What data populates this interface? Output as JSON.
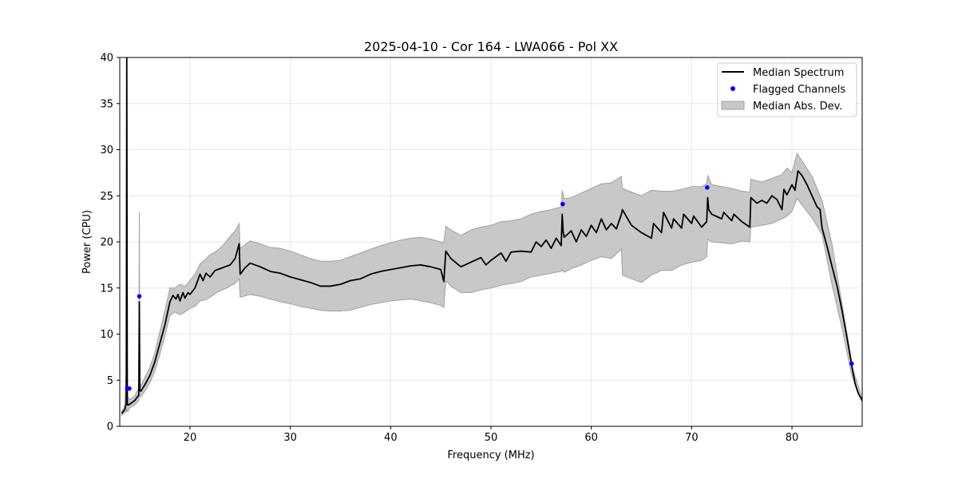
{
  "chart_data": {
    "type": "line",
    "title": "2025-04-10 - Cor 164 - LWA066 - Pol XX",
    "xlabel": "Frequency (MHz)",
    "ylabel": "Power (CPU)",
    "xlim": [
      13,
      87
    ],
    "ylim": [
      0,
      40
    ],
    "xticks": [
      20,
      30,
      40,
      50,
      60,
      70,
      80
    ],
    "yticks": [
      0,
      5,
      10,
      15,
      20,
      25,
      30,
      35,
      40
    ],
    "grid": true,
    "legend_position": "top-right",
    "colors": {
      "median": "#000000",
      "flagged": "#0000ff",
      "mad_fill": "#c8c8c8",
      "mad_edge": "#a0a0a0"
    },
    "legend": [
      {
        "key": "median",
        "label": "Median Spectrum"
      },
      {
        "key": "flagged",
        "label": "Flagged Channels"
      },
      {
        "key": "mad",
        "label": "Median Abs. Dev."
      }
    ],
    "series": [
      {
        "name": "Median Spectrum",
        "x": [
          13.2,
          13.5,
          13.65,
          13.7,
          13.75,
          13.8,
          14.0,
          14.5,
          14.9,
          14.95,
          15.0,
          15.1,
          15.5,
          16.0,
          16.5,
          17.0,
          17.5,
          18.0,
          18.3,
          18.6,
          18.8,
          19.0,
          19.3,
          19.5,
          19.8,
          20.0,
          20.5,
          21.0,
          21.3,
          21.6,
          22.0,
          22.5,
          23.0,
          23.5,
          24.0,
          24.5,
          24.9,
          25.0,
          25.5,
          26.0,
          27.0,
          28.0,
          29.0,
          30.0,
          31.0,
          32.0,
          33.0,
          34.0,
          35.0,
          36.0,
          37.0,
          38.0,
          39.0,
          40.0,
          41.0,
          42.0,
          43.0,
          44.0,
          45.0,
          45.3,
          45.5,
          46.0,
          47.0,
          48.0,
          49.0,
          49.5,
          50.0,
          51.0,
          51.5,
          52.0,
          53.0,
          54.0,
          54.5,
          55.0,
          55.5,
          56.0,
          56.5,
          57.0,
          57.1,
          57.2,
          57.3,
          58.0,
          58.5,
          59.0,
          59.5,
          60.0,
          60.5,
          61.0,
          61.5,
          62.0,
          62.5,
          63.0,
          63.1,
          64.0,
          65.0,
          66.0,
          66.2,
          67.0,
          67.2,
          68.0,
          68.2,
          69.0,
          69.2,
          70.0,
          70.2,
          71.0,
          71.5,
          71.6,
          71.7,
          72.0,
          73.0,
          73.2,
          74.0,
          74.2,
          75.0,
          75.8,
          75.9,
          76.5,
          77.0,
          77.5,
          78.0,
          78.5,
          79.0,
          79.2,
          79.5,
          80.0,
          80.3,
          80.6,
          81.0,
          81.5,
          82.0,
          82.5,
          82.8,
          83.0,
          83.5,
          84.0,
          84.5,
          85.0,
          85.5,
          85.9,
          86.0,
          86.3,
          86.6,
          87.0
        ],
        "values": [
          1.4,
          1.8,
          2.5,
          40.0,
          2.5,
          2.3,
          2.4,
          2.8,
          3.4,
          13.5,
          4.0,
          3.8,
          4.5,
          5.5,
          7.0,
          9.0,
          11.0,
          13.5,
          14.2,
          13.8,
          14.3,
          13.6,
          14.5,
          13.9,
          14.5,
          14.3,
          15.0,
          16.5,
          15.8,
          16.6,
          16.2,
          16.9,
          17.1,
          17.3,
          17.5,
          18.2,
          19.8,
          16.5,
          17.2,
          17.7,
          17.3,
          16.8,
          16.6,
          16.2,
          15.9,
          15.6,
          15.2,
          15.2,
          15.4,
          15.8,
          16.0,
          16.5,
          16.8,
          17.0,
          17.2,
          17.4,
          17.5,
          17.3,
          17.0,
          15.7,
          19.0,
          18.2,
          17.3,
          17.8,
          18.3,
          17.5,
          18.0,
          18.8,
          17.9,
          18.9,
          19.0,
          18.9,
          20.0,
          19.5,
          20.2,
          19.3,
          20.4,
          19.6,
          23.0,
          21.0,
          20.5,
          21.2,
          20.0,
          21.3,
          20.6,
          21.8,
          21.0,
          22.5,
          21.3,
          22.0,
          21.4,
          23.0,
          23.5,
          21.8,
          21.0,
          20.4,
          22.0,
          21.0,
          23.2,
          21.5,
          22.5,
          21.5,
          23.0,
          22.0,
          22.8,
          21.6,
          22.2,
          24.8,
          23.5,
          23.0,
          22.5,
          23.2,
          22.3,
          23.0,
          22.2,
          21.6,
          24.8,
          24.2,
          24.5,
          24.2,
          25.0,
          24.6,
          23.5,
          25.7,
          25.1,
          26.2,
          25.6,
          27.7,
          27.2,
          26.2,
          25.0,
          23.8,
          23.5,
          21.5,
          19.5,
          17.3,
          15.2,
          12.5,
          9.5,
          7.0,
          6.3,
          4.6,
          3.6,
          2.8
        ]
      },
      {
        "name": "Median Abs. Dev.",
        "x": [
          13.2,
          13.5,
          13.65,
          13.7,
          13.75,
          13.8,
          14.0,
          14.5,
          14.9,
          14.95,
          15.0,
          15.1,
          15.5,
          16.0,
          16.5,
          17.0,
          17.5,
          18.0,
          18.5,
          19.0,
          19.5,
          20.0,
          20.5,
          21.0,
          21.5,
          22.0,
          22.5,
          23.0,
          23.5,
          24.0,
          24.5,
          24.9,
          25.0,
          26.0,
          27.0,
          28.0,
          29.0,
          30.0,
          31.0,
          32.0,
          33.0,
          34.0,
          35.0,
          36.0,
          37.0,
          38.0,
          39.0,
          40.0,
          41.0,
          42.0,
          43.0,
          44.0,
          45.0,
          45.3,
          45.5,
          46.0,
          47.0,
          48.0,
          49.0,
          50.0,
          51.0,
          52.0,
          53.0,
          54.0,
          55.0,
          56.0,
          57.0,
          57.1,
          57.3,
          58.0,
          59.0,
          60.0,
          61.0,
          62.0,
          63.0,
          63.1,
          64.0,
          65.0,
          66.0,
          67.0,
          68.0,
          69.0,
          70.0,
          71.0,
          71.5,
          71.6,
          72.0,
          73.0,
          74.0,
          75.0,
          75.8,
          75.9,
          77.0,
          78.0,
          79.0,
          79.5,
          80.0,
          80.5,
          81.0,
          82.0,
          83.0,
          84.0,
          85.0,
          85.9,
          86.0,
          87.0
        ],
        "upper": [
          1.6,
          2.2,
          6.2,
          40.0,
          6.2,
          3.2,
          2.9,
          3.3,
          4.2,
          23.3,
          4.8,
          4.4,
          5.3,
          6.4,
          8.0,
          10.3,
          12.5,
          15.0,
          15.0,
          15.4,
          15.2,
          15.8,
          16.5,
          17.6,
          18.1,
          18.6,
          18.9,
          19.3,
          19.9,
          20.6,
          21.2,
          22.0,
          19.3,
          20.1,
          19.8,
          19.4,
          19.3,
          19.0,
          18.6,
          18.2,
          17.9,
          17.9,
          18.0,
          18.4,
          18.8,
          19.2,
          19.6,
          19.9,
          20.2,
          20.4,
          20.5,
          20.3,
          20.0,
          19.9,
          21.7,
          21.3,
          20.7,
          21.3,
          21.6,
          21.8,
          22.2,
          22.3,
          22.5,
          23.0,
          23.3,
          23.5,
          23.8,
          25.6,
          24.7,
          24.8,
          25.3,
          25.8,
          26.3,
          26.4,
          27.1,
          25.8,
          25.4,
          25.0,
          25.6,
          25.5,
          25.5,
          25.7,
          26.0,
          26.0,
          26.3,
          27.2,
          26.2,
          26.0,
          25.8,
          25.5,
          25.4,
          26.8,
          26.5,
          26.9,
          27.3,
          28.0,
          27.5,
          29.6,
          28.8,
          27.1,
          24.5,
          19.7,
          13.2,
          7.4,
          6.5,
          3.0
        ],
        "lower": [
          1.2,
          1.5,
          1.6,
          1.8,
          1.6,
          1.6,
          2.0,
          2.3,
          2.8,
          3.5,
          3.2,
          3.2,
          3.8,
          4.7,
          6.0,
          7.8,
          9.8,
          12.0,
          12.4,
          12.1,
          12.4,
          12.8,
          13.0,
          13.6,
          13.7,
          14.0,
          14.4,
          14.7,
          14.9,
          15.2,
          15.5,
          16.0,
          14.0,
          14.3,
          14.1,
          13.8,
          13.5,
          13.3,
          13.0,
          12.8,
          12.6,
          12.5,
          12.5,
          12.6,
          12.9,
          13.2,
          13.4,
          13.6,
          13.7,
          13.8,
          13.6,
          13.4,
          13.1,
          12.9,
          15.8,
          15.2,
          14.5,
          14.5,
          14.8,
          15.0,
          15.3,
          15.5,
          15.7,
          16.2,
          16.4,
          16.6,
          16.8,
          17.0,
          16.7,
          17.1,
          17.5,
          18.0,
          18.4,
          18.2,
          19.2,
          16.4,
          16.0,
          15.6,
          16.4,
          16.9,
          16.9,
          17.5,
          17.8,
          18.0,
          18.4,
          20.3,
          20.0,
          19.9,
          19.8,
          20.1,
          20.0,
          21.6,
          21.8,
          22.0,
          22.5,
          22.8,
          23.3,
          24.7,
          24.0,
          22.6,
          20.8,
          15.3,
          10.6,
          5.8,
          5.4,
          2.6
        ]
      }
    ],
    "flagged_channels": {
      "name": "Flagged Channels",
      "x": [
        13.75,
        13.95,
        14.95,
        57.15,
        71.55,
        85.95
      ],
      "y": [
        4.1,
        4.1,
        14.1,
        24.1,
        25.9,
        6.8
      ]
    }
  }
}
